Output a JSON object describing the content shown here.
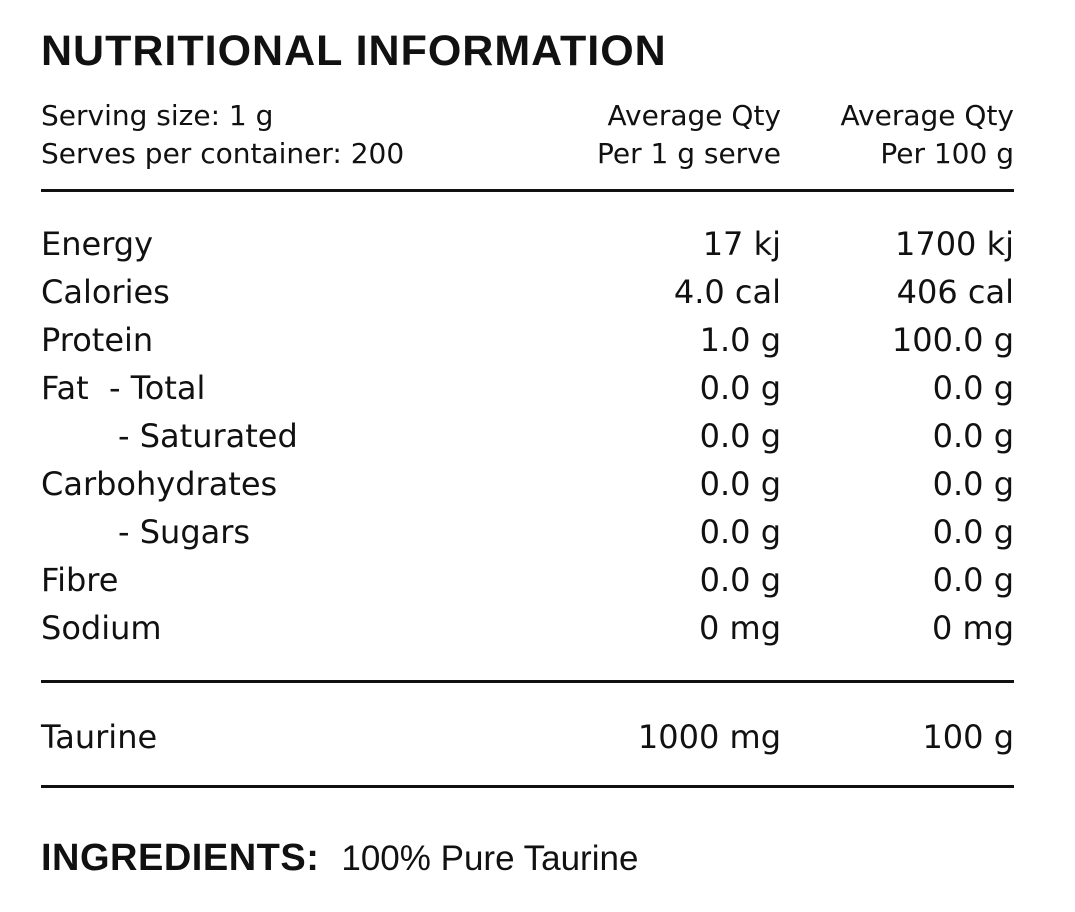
{
  "title": "NUTRITIONAL INFORMATION",
  "header": {
    "serving_size": "Serving size: 1 g",
    "serves_per_container": "Serves per container: 200",
    "col1_line1": "Average Qty",
    "col1_line2": "Per 1 g serve",
    "col2_line1": "Average Qty",
    "col2_line2": "Per 100 g"
  },
  "nutrients": [
    {
      "name": "Energy",
      "per_serve": "17 kj",
      "per_100g": "1700 kj"
    },
    {
      "name": "Calories",
      "per_serve": "4.0 cal",
      "per_100g": "406 cal"
    },
    {
      "name": "Protein",
      "per_serve": "1.0 g",
      "per_100g": "100.0 g"
    },
    {
      "name": "Fat  - Total",
      "per_serve": "0.0 g",
      "per_100g": "0.0 g"
    },
    {
      "name": "- Saturated",
      "per_serve": "0.0 g",
      "per_100g": "0.0 g"
    },
    {
      "name": "Carbohydrates",
      "per_serve": "0.0 g",
      "per_100g": "0.0 g"
    },
    {
      "name": "- Sugars",
      "per_serve": "0.0 g",
      "per_100g": "0.0 g"
    },
    {
      "name": "Fibre",
      "per_serve": "0.0 g",
      "per_100g": "0.0 g"
    },
    {
      "name": "Sodium",
      "per_serve": "0 mg",
      "per_100g": "0 mg"
    }
  ],
  "taurine": {
    "name": "Taurine",
    "per_serve": "1000 mg",
    "per_100g": "100 g"
  },
  "ingredients": {
    "label": "INGREDIENTS:",
    "value": "100% Pure Taurine"
  }
}
